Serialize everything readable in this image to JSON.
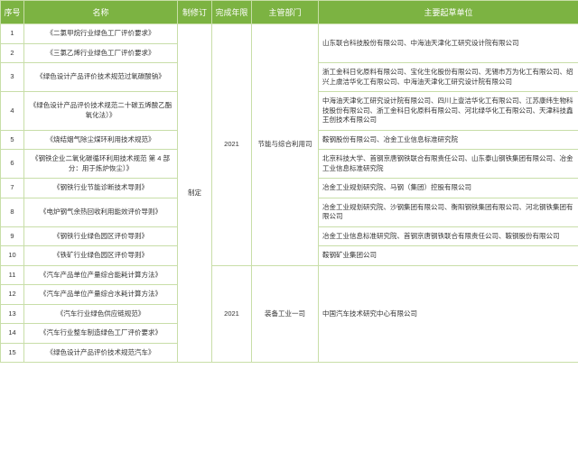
{
  "header_bg": "#7cb342",
  "border_color": "#c8dea8",
  "columns": [
    {
      "key": "seq",
      "label": "序号"
    },
    {
      "key": "name",
      "label": "名称"
    },
    {
      "key": "type",
      "label": "制修订"
    },
    {
      "key": "year",
      "label": "完成年限"
    },
    {
      "key": "dept",
      "label": "主管部门"
    },
    {
      "key": "org",
      "label": "主要起草单位"
    }
  ],
  "type_label": "制定",
  "year_group1": "2021",
  "dept_group1": "节能与综合利用司",
  "year_group2": "2021",
  "dept_group2": "装备工业一司",
  "rows": [
    {
      "seq": "1",
      "name": "《二氯甲烷行业绿色工厂评价要求》",
      "org": "山东联合科技股份有限公司、中海油天津化工研究设计院有限公司"
    },
    {
      "seq": "2",
      "name": "《三氯乙烯行业绿色工厂评价要求》",
      "org": ""
    },
    {
      "seq": "3",
      "name": "《绿色设计产品评价技术规范过氧碳酸钠》",
      "org": "浙工金科日化原料有限公司、宝化生化股份有限公司、无锡市万为化工有限公司、绍兴上虞洁华化工有限公司、中海油天津化工研究设计院有限公司"
    },
    {
      "seq": "4",
      "name": "《绿色设计产品评价技术规范二十碳五烯酸乙酯氧化法）》",
      "org": "中海油天津化工研究设计院有限公司、四川上壹洁华化工有限公司、江苏康纬生物科技股份有限公司、浙工金科日化原料有限公司、河北绿华化工有限公司、天津科技鑫王创技术有限公司"
    },
    {
      "seq": "5",
      "name": "《烧结烟气除尘煤环利用技术规范》",
      "org": "鞍钢股份有限公司、冶金工业信息标准研究院"
    },
    {
      "seq": "6",
      "name": "《钢铁企业二氧化碳循环利用技术规范 第 4 部分：用于炼炉恢尘）》",
      "org": "北京科技大学、首钢京唐钢铁联合有限责任公司、山东泰山钢铁集团有限公司、冶金工业信息标准研究院"
    },
    {
      "seq": "7",
      "name": "《钢铁行业节能诊断技术导则》",
      "org": "冶金工业规划研究院、马钢（集团）控股有限公司"
    },
    {
      "seq": "8",
      "name": "《电炉钢气余热回收利用能效评价导则》",
      "org": "冶金工业规划研究院、沙钢集团有限公司、衡阳钢铁集团有限公司、河北钢铁集团有限公司"
    },
    {
      "seq": "9",
      "name": "《钢铁行业绿色园区评价导则》",
      "org": "冶金工业信息标准研究院、首钢京唐钢铁联合有限责任公司、鞍钢股份有限公司"
    },
    {
      "seq": "10",
      "name": "《铁矿行业绿色园区评价导则》",
      "org": "鞍钢矿业集团公司"
    },
    {
      "seq": "11",
      "name": "《汽车产品单位产量综合能耗计算方法》",
      "org": ""
    },
    {
      "seq": "12",
      "name": "《汽车产品单位产量综合水耗计算方法》",
      "org": ""
    },
    {
      "seq": "13",
      "name": "《汽车行业绿色供应链规范》",
      "org": "中国汽车技术研究中心有限公司"
    },
    {
      "seq": "14",
      "name": "《汽车行业整车制造绿色工厂评价要求》",
      "org": ""
    },
    {
      "seq": "15",
      "name": "《绿色设计产品评价技术规范汽车》",
      "org": ""
    }
  ]
}
